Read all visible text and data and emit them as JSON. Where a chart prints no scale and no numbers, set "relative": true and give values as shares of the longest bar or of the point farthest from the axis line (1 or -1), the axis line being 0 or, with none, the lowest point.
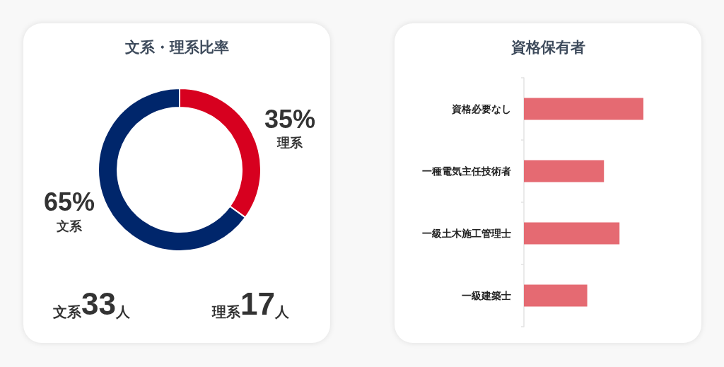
{
  "chart_data": [
    {
      "type": "donut",
      "title": "文系・理系比率",
      "categories": [
        "理系",
        "文系"
      ],
      "values": [
        35,
        65
      ],
      "colors": [
        "#d7001f",
        "#00266b"
      ],
      "value_labels": [
        "35%",
        "65%"
      ],
      "annotations": [
        "文系33人",
        "理系17人"
      ]
    },
    {
      "type": "bar",
      "title": "資格保有者",
      "orientation": "horizontal",
      "relative": true,
      "categories": [
        "資格必要なし",
        "一種電気主任技術者",
        "一級土木施工管理士",
        "一級建築士"
      ],
      "values": [
        1,
        0.67,
        0.8,
        0.53
      ],
      "color": "#e56a72"
    }
  ]
}
